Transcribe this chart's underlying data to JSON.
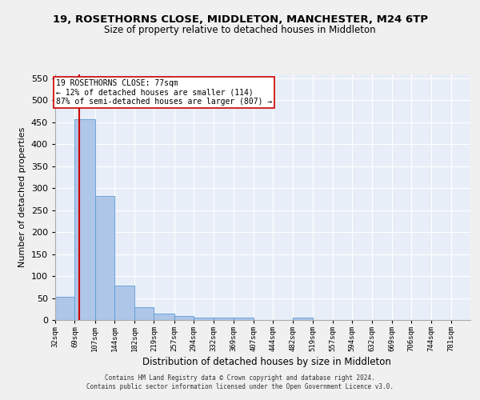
{
  "title": "19, ROSETHORNS CLOSE, MIDDLETON, MANCHESTER, M24 6TP",
  "subtitle": "Size of property relative to detached houses in Middleton",
  "xlabel": "Distribution of detached houses by size in Middleton",
  "ylabel": "Number of detached properties",
  "bar_color": "#aec6e8",
  "bar_edge_color": "#5b9bd5",
  "background_color": "#e8eef7",
  "grid_color": "#ffffff",
  "annotation_line_color": "#cc0000",
  "annotation_box_color": "#ffffff",
  "annotation_box_edge": "#cc0000",
  "annotation_text": "19 ROSETHORNS CLOSE: 77sqm\n← 12% of detached houses are smaller (114)\n87% of semi-detached houses are larger (807) →",
  "annotation_fontsize": 7,
  "property_size": 77,
  "categories": [
    "32sqm",
    "69sqm",
    "107sqm",
    "144sqm",
    "182sqm",
    "219sqm",
    "257sqm",
    "294sqm",
    "332sqm",
    "369sqm",
    "407sqm",
    "444sqm",
    "482sqm",
    "519sqm",
    "557sqm",
    "594sqm",
    "632sqm",
    "669sqm",
    "706sqm",
    "744sqm",
    "781sqm"
  ],
  "bin_edges": [
    32,
    69,
    107,
    144,
    182,
    219,
    257,
    294,
    332,
    369,
    407,
    444,
    482,
    519,
    557,
    594,
    632,
    669,
    706,
    744,
    781,
    818
  ],
  "bar_heights": [
    53,
    458,
    283,
    78,
    30,
    14,
    10,
    5,
    5,
    6,
    0,
    0,
    5,
    0,
    0,
    0,
    0,
    0,
    0,
    0,
    0
  ],
  "ylim": [
    0,
    560
  ],
  "yticks": [
    0,
    50,
    100,
    150,
    200,
    250,
    300,
    350,
    400,
    450,
    500,
    550
  ],
  "fig_bg": "#f0f0f0",
  "footer1": "Contains HM Land Registry data © Crown copyright and database right 2024.",
  "footer2": "Contains public sector information licensed under the Open Government Licence v3.0."
}
